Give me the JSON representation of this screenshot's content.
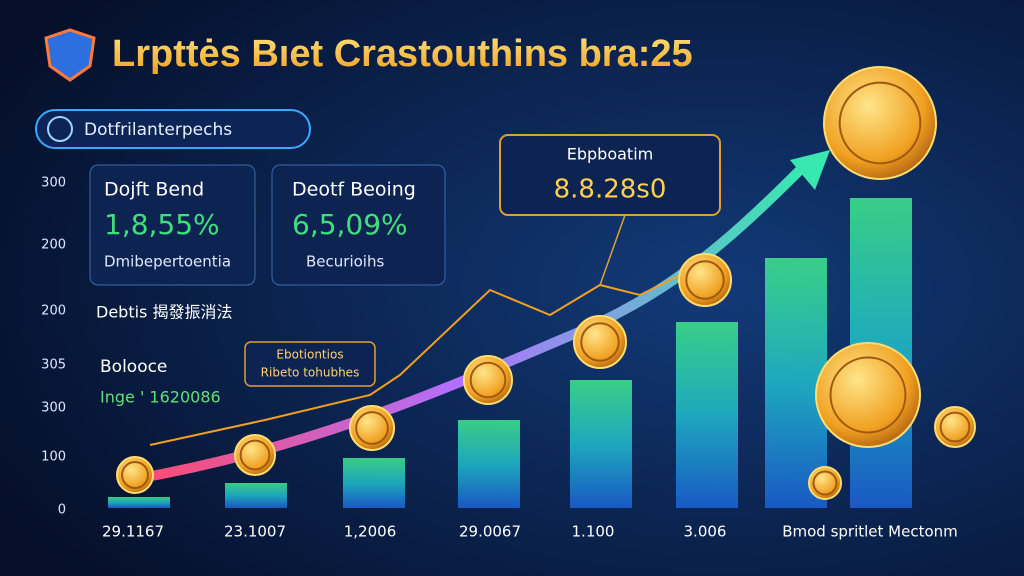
{
  "header": {
    "title": "Lrpttės Bıet Crastouthins bra:25"
  },
  "badge": {
    "label": "Dotfrilanterpechs"
  },
  "cards": [
    {
      "title": "Dojft Bend",
      "value": "1,8,55%",
      "caption": "Dmibepertoentia"
    },
    {
      "title": "Deotf Beoing",
      "value": "6,5,09%",
      "caption": "Becurioihs"
    }
  ],
  "notes": {
    "heading": "Debtis 揭發振消法",
    "label": "Bolooce",
    "detail": "Inge ' 1620086"
  },
  "callouts": [
    {
      "title": "Ebpboatim",
      "value": "8.8.28s0"
    },
    {
      "title": "Ebotiontios",
      "value": "Ribeto tohubhes"
    }
  ],
  "y_axis_labels": [
    "300",
    "200",
    "200",
    "305",
    "300",
    "100",
    "0"
  ],
  "x_axis_labels": [
    "29.1167",
    "23.1007",
    "1,2006",
    "29.0067",
    "1.100",
    "3.006",
    "Bmod spritlet Mectonm"
  ]
}
